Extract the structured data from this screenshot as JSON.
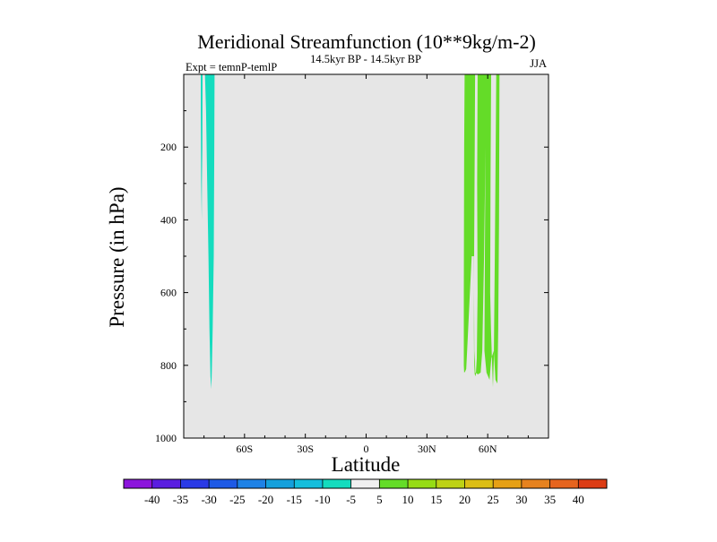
{
  "chart_data": {
    "type": "contour",
    "title": "Meridional Streamfunction (10**9kg/m-2)",
    "left_label": "Expt = temnP-temlP",
    "center_label": "14.5kyr BP - 14.5kyr BP",
    "right_label": "JJA",
    "xlabel": "Latitude",
    "ylabel": "Pressure (in hPa)",
    "xlim": [
      -90,
      90
    ],
    "ylim": [
      1000,
      0
    ],
    "y_inverted": true,
    "x_ticks": [
      {
        "value": -60,
        "label": "60S"
      },
      {
        "value": -30,
        "label": "30S"
      },
      {
        "value": 0,
        "label": "0"
      },
      {
        "value": 30,
        "label": "30N"
      },
      {
        "value": 60,
        "label": "60N"
      }
    ],
    "y_ticks": [
      {
        "value": 200,
        "label": "200"
      },
      {
        "value": 400,
        "label": "400"
      },
      {
        "value": 600,
        "label": "600"
      },
      {
        "value": 800,
        "label": "800"
      },
      {
        "value": 1000,
        "label": "1000"
      }
    ],
    "missing_color": "#e6e6e6",
    "colorbar": {
      "levels": [
        -40,
        -35,
        -30,
        -25,
        -20,
        -15,
        -10,
        -5,
        5,
        10,
        15,
        20,
        25,
        30,
        35,
        40
      ],
      "labels": [
        "-40",
        "-35",
        "-30",
        "-25",
        "-20",
        "-15",
        "-10",
        "-5",
        "5",
        "10",
        "15",
        "20",
        "25",
        "30",
        "35",
        "40"
      ],
      "colors": [
        "#8c14dc",
        "#5a1ee0",
        "#2a3ae6",
        "#1e5ae6",
        "#1e82e6",
        "#14a0dc",
        "#14bedc",
        "#14dcbe",
        "#f0f0f0",
        "#64dc28",
        "#96dc14",
        "#bed214",
        "#dcbe14",
        "#e6a014",
        "#e6821e",
        "#e6641e",
        "#dc3c14"
      ]
    },
    "regions": [
      {
        "value": -7,
        "color": "#14dcbe",
        "outline": [
          [
            -81.6,
            0
          ],
          [
            -80.7,
            0
          ],
          [
            -80.8,
            200
          ],
          [
            -81.0,
            290
          ],
          [
            -81.1,
            400
          ],
          [
            -81.4,
            290
          ],
          [
            -81.6,
            100
          ]
        ]
      },
      {
        "value": -7,
        "color": "#14dcbe",
        "outline": [
          [
            -79.5,
            0
          ],
          [
            -74.8,
            0
          ],
          [
            -74.9,
            200
          ],
          [
            -75.2,
            500
          ],
          [
            -75.7,
            700
          ],
          [
            -76.1,
            810
          ],
          [
            -76.4,
            865
          ],
          [
            -76.8,
            830
          ],
          [
            -77.3,
            700
          ],
          [
            -77.8,
            500
          ],
          [
            -78.4,
            300
          ],
          [
            -79.0,
            100
          ]
        ]
      },
      {
        "value": 7,
        "color": "#64dc28",
        "outline": [
          [
            48.6,
            0
          ],
          [
            53.8,
            0
          ],
          [
            53.6,
            200
          ],
          [
            53.3,
            500
          ],
          [
            53.2,
            700
          ],
          [
            53.3,
            790
          ],
          [
            53.6,
            825
          ],
          [
            54.1,
            830
          ],
          [
            54.6,
            780
          ],
          [
            55.0,
            600
          ],
          [
            54.8,
            300
          ],
          [
            55.0,
            0
          ],
          [
            61.7,
            0
          ],
          [
            61.4,
            300
          ],
          [
            61.2,
            600
          ],
          [
            61.6,
            700
          ],
          [
            62.2,
            800
          ],
          [
            62.6,
            860
          ],
          [
            63.0,
            780
          ],
          [
            63.5,
            500
          ],
          [
            64.2,
            0
          ],
          [
            65.8,
            0
          ],
          [
            65.6,
            400
          ],
          [
            65.2,
            700
          ],
          [
            64.8,
            850
          ],
          [
            63.8,
            840
          ],
          [
            63.0,
            760
          ],
          [
            61.8,
            780
          ],
          [
            60.9,
            840
          ],
          [
            59.4,
            820
          ],
          [
            58.4,
            760
          ],
          [
            58.6,
            500
          ],
          [
            58.9,
            200
          ],
          [
            58.2,
            500
          ],
          [
            57.3,
            760
          ],
          [
            56.5,
            820
          ],
          [
            55.2,
            825
          ],
          [
            53.9,
            820
          ],
          [
            53.4,
            760
          ],
          [
            53.2,
            500
          ],
          [
            52.1,
            500
          ],
          [
            51.2,
            600
          ],
          [
            50.2,
            720
          ],
          [
            49.4,
            810
          ],
          [
            48.8,
            818
          ],
          [
            48.4,
            820
          ],
          [
            48.2,
            800
          ],
          [
            48.2,
            600
          ],
          [
            48.3,
            400
          ],
          [
            48.4,
            200
          ]
        ]
      }
    ]
  }
}
